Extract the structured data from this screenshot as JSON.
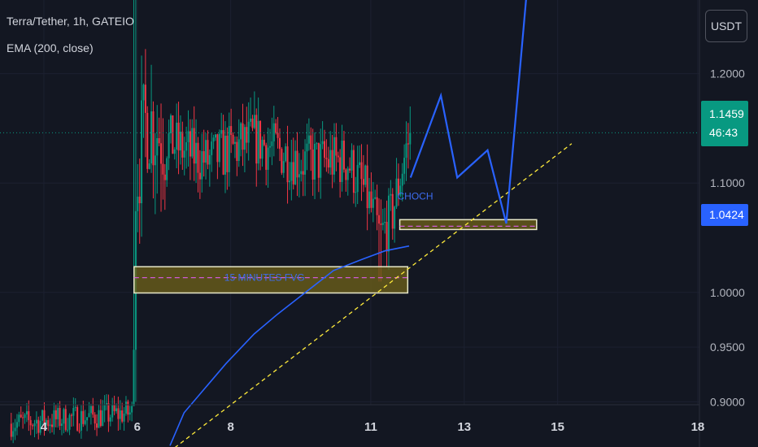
{
  "header": {
    "symbol": "Terra/Tether, 1h, GATEIO",
    "indicator": "EMA (200, close)"
  },
  "currency_button": "USDT",
  "colors": {
    "background": "#131722",
    "up_candle": "#089981",
    "down_candle": "#f23645",
    "ema": "#2962ff",
    "projection": "#2962ff",
    "trendline": "#ffeb3b",
    "fvg_box_fill": "#6b5f1a",
    "price_line": "#089981"
  },
  "price_tags": [
    {
      "name": "last-price",
      "price": "1.1459",
      "timer": "46:43",
      "color": "#089981",
      "value": 1.1459
    },
    {
      "name": "ema-value",
      "price": "1.0424",
      "color": "#2962ff",
      "value": 1.0424
    }
  ],
  "chart_data": {
    "type": "candlestick",
    "y_ticks": [
      "1.2000",
      "1.1000",
      "1.0000",
      "0.9500",
      "0.9000"
    ],
    "y_tick_values": [
      1.2,
      1.1,
      1.0,
      0.95,
      0.9
    ],
    "ylim": [
      0.8587,
      1.2673
    ],
    "x_ticks": [
      "4",
      "6",
      "8",
      "11",
      "13",
      "15",
      "18"
    ],
    "x_tick_days": [
      4,
      6,
      8,
      11,
      13,
      15,
      18
    ],
    "xlim": [
      3.06,
      19.29
    ],
    "last_price": 1.1459,
    "candles_summary": {
      "start_day": 3.3,
      "end_day": 11.85,
      "pre_launch_range": [
        0.865,
        0.95
      ],
      "spike_day": 5.95,
      "spike_high": 1.27,
      "spike_low": 0.9,
      "consolidation_range": [
        1.05,
        1.18
      ],
      "sweep_low_day": 11.2,
      "sweep_low": 1.01,
      "last_close": 1.1459
    },
    "ema200": {
      "label": "EMA (200, close)",
      "points": [
        [
          6.7,
          0.86
        ],
        [
          7.0,
          0.89
        ],
        [
          7.5,
          0.915
        ],
        [
          7.9,
          0.935
        ],
        [
          8.5,
          0.962
        ],
        [
          9.0,
          0.98
        ],
        [
          9.6,
          1.0
        ],
        [
          10.2,
          1.02
        ],
        [
          10.8,
          1.03
        ],
        [
          11.3,
          1.038
        ],
        [
          11.82,
          1.0424
        ]
      ]
    },
    "projection_path": [
      [
        11.85,
        1.105
      ],
      [
        12.5,
        1.18
      ],
      [
        12.85,
        1.105
      ],
      [
        13.5,
        1.13
      ],
      [
        13.9,
        1.063
      ],
      [
        14.35,
        1.28
      ]
    ],
    "trendline": [
      [
        6.8,
        0.858
      ],
      [
        15.3,
        1.136
      ]
    ],
    "fvg_zone": {
      "label": "15 MINUTES FVG",
      "x0": 5.93,
      "x1": 11.79,
      "y0": 0.9995,
      "y1": 1.0235,
      "mid": 1.0135
    },
    "choch": {
      "label": "CHOCH",
      "day": 11.95,
      "price": 1.085
    },
    "choch_zone": {
      "x0": 11.62,
      "x1": 14.55,
      "y0": 1.0575,
      "y1": 1.0665,
      "mid": 1.0605
    }
  }
}
